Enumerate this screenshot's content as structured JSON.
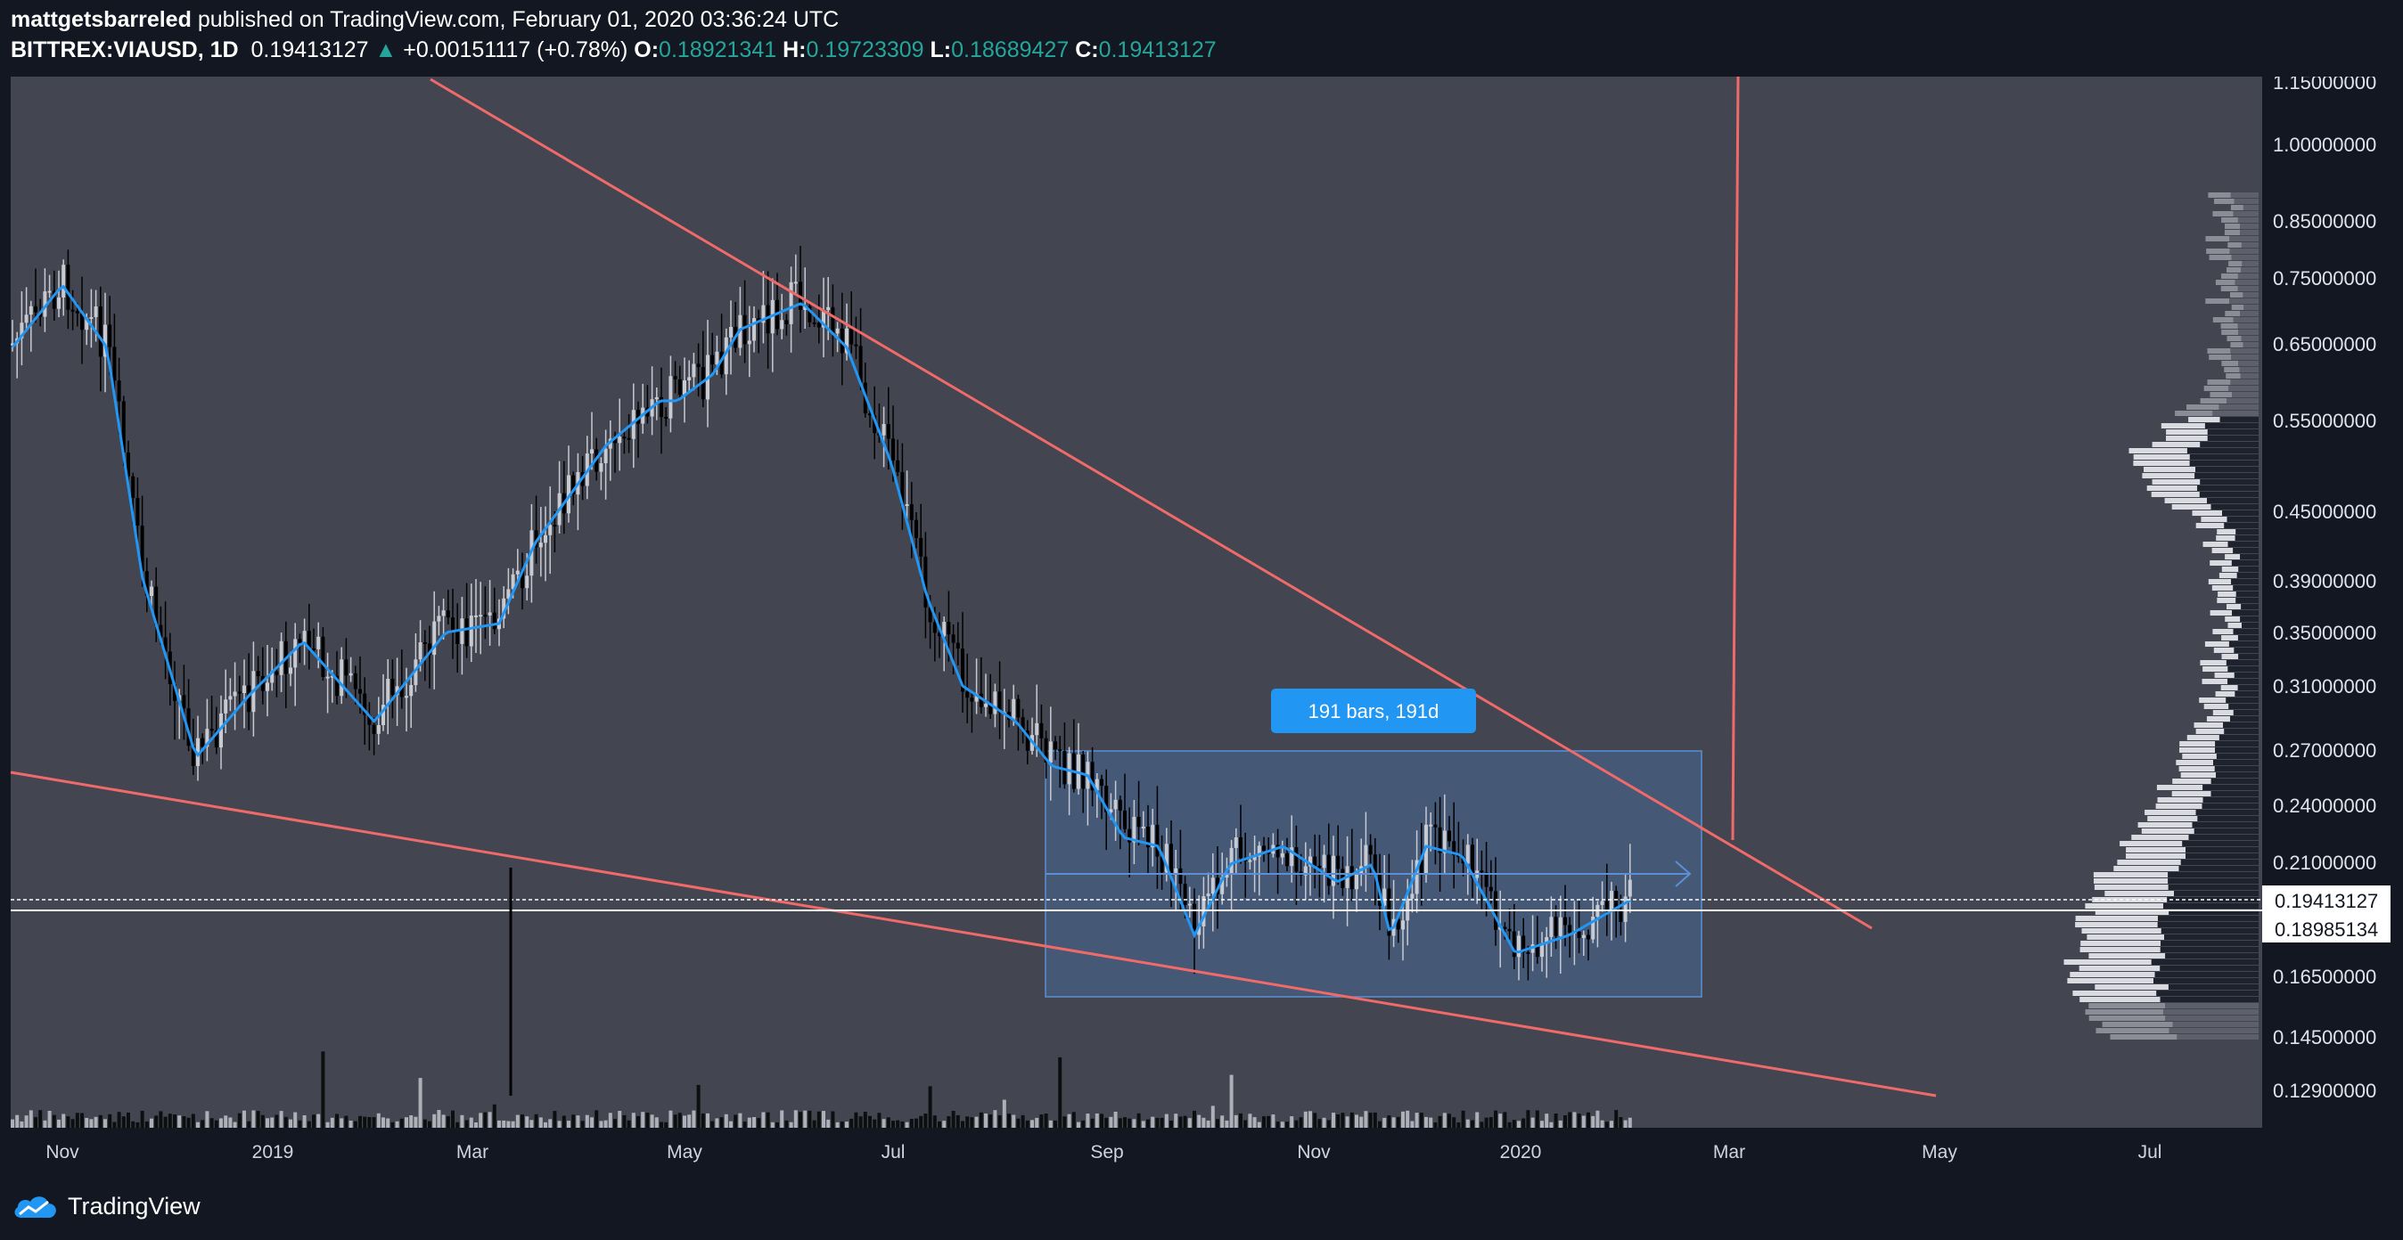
{
  "header": {
    "author": "mattgetsbarreled",
    "published_text": "published on TradingView.com, February 01, 2020 03:36:24 UTC",
    "symbol": "BITTREX:VIAUSD, 1D",
    "last_price": "0.19413127",
    "change_arrow": "▲",
    "change": "+0.00151117 (+0.78%)",
    "open_label": "O:",
    "open": "0.18921341",
    "high_label": "H:",
    "high": "0.19723309",
    "low_label": "L:",
    "low": "0.18689427",
    "close_label": "C:",
    "close": "0.19413127"
  },
  "chart_data": {
    "type": "candlestick",
    "interval": "1D",
    "scale": "log",
    "price_axis_labels": [
      "1.15000000",
      "1.00000000",
      "0.85000000",
      "0.75000000",
      "0.65000000",
      "0.55000000",
      "0.45000000",
      "0.39000000",
      "0.35000000",
      "0.31000000",
      "0.27000000",
      "0.24000000",
      "0.21000000",
      "0.16500000",
      "0.14500000",
      "0.12900000"
    ],
    "time_axis_labels": [
      "Nov",
      "2019",
      "Mar",
      "May",
      "Jul",
      "Sep",
      "Nov",
      "2020",
      "Mar",
      "May",
      "Jul"
    ],
    "current_price_label": "0.19413127",
    "crosshair_price_label": "0.18985134",
    "date_range_label": "191 bars, 191d",
    "ma_color": "#2196f3",
    "trendline_color": "#f06a6a",
    "range_box_color": "#2962ff",
    "volume_profile": true
  },
  "footer": {
    "brand": "TradingView"
  }
}
